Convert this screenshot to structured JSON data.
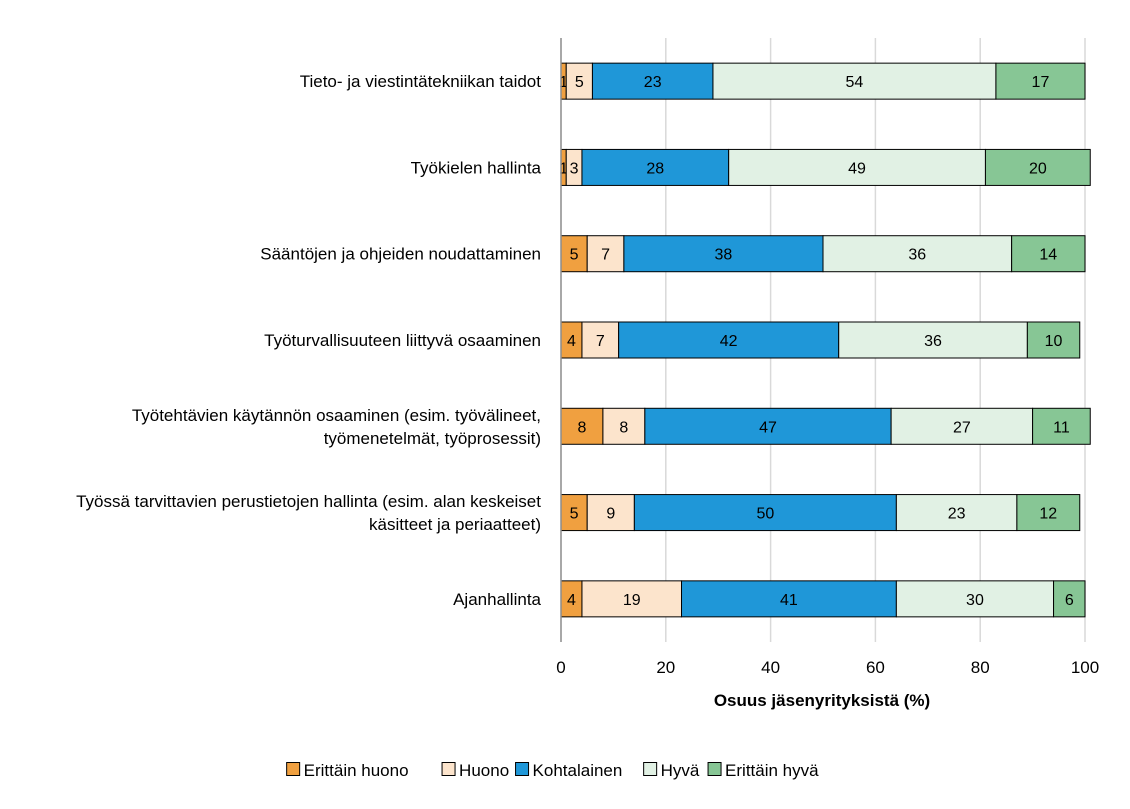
{
  "chart_data": {
    "type": "bar",
    "orientation": "horizontal",
    "stacked": true,
    "categories": [
      [
        "Tieto- ja viestintätekniikan taidot"
      ],
      [
        "Työkielen hallinta"
      ],
      [
        "Sääntöjen ja ohjeiden noudattaminen"
      ],
      [
        "Työturvallisuuteen liittyvä osaaminen"
      ],
      [
        "Työtehtävien käytännön osaaminen (esim. työvälineet,",
        "työmenetelmät, työprosessit)"
      ],
      [
        "Työssä tarvittavien perustietojen hallinta (esim. alan keskeiset",
        "käsitteet ja periaatteet)"
      ],
      [
        "Ajanhallinta"
      ]
    ],
    "series": [
      {
        "name": "Erittäin huono",
        "color": "#F0A040",
        "values": [
          1,
          1,
          5,
          4,
          8,
          5,
          4
        ]
      },
      {
        "name": "Huono",
        "color": "#FCE4CC",
        "values": [
          5,
          3,
          7,
          7,
          8,
          9,
          19
        ]
      },
      {
        "name": "Kohtalainen",
        "color": "#1F97D8",
        "values": [
          23,
          28,
          38,
          42,
          47,
          50,
          41
        ]
      },
      {
        "name": "Hyvä",
        "color": "#E1F1E4",
        "values": [
          54,
          49,
          36,
          36,
          27,
          23,
          30
        ]
      },
      {
        "name": "Erittäin hyvä",
        "color": "#87C695",
        "values": [
          17,
          20,
          14,
          10,
          11,
          12,
          6
        ]
      }
    ],
    "xlabel": "Osuus jäsenyrityksistä (%)",
    "ylabel": "",
    "xlim": [
      0,
      100
    ],
    "xticks": [
      0,
      20,
      40,
      60,
      80,
      100
    ],
    "grid": "vertical",
    "legend": "bottom",
    "data_labels": true
  }
}
